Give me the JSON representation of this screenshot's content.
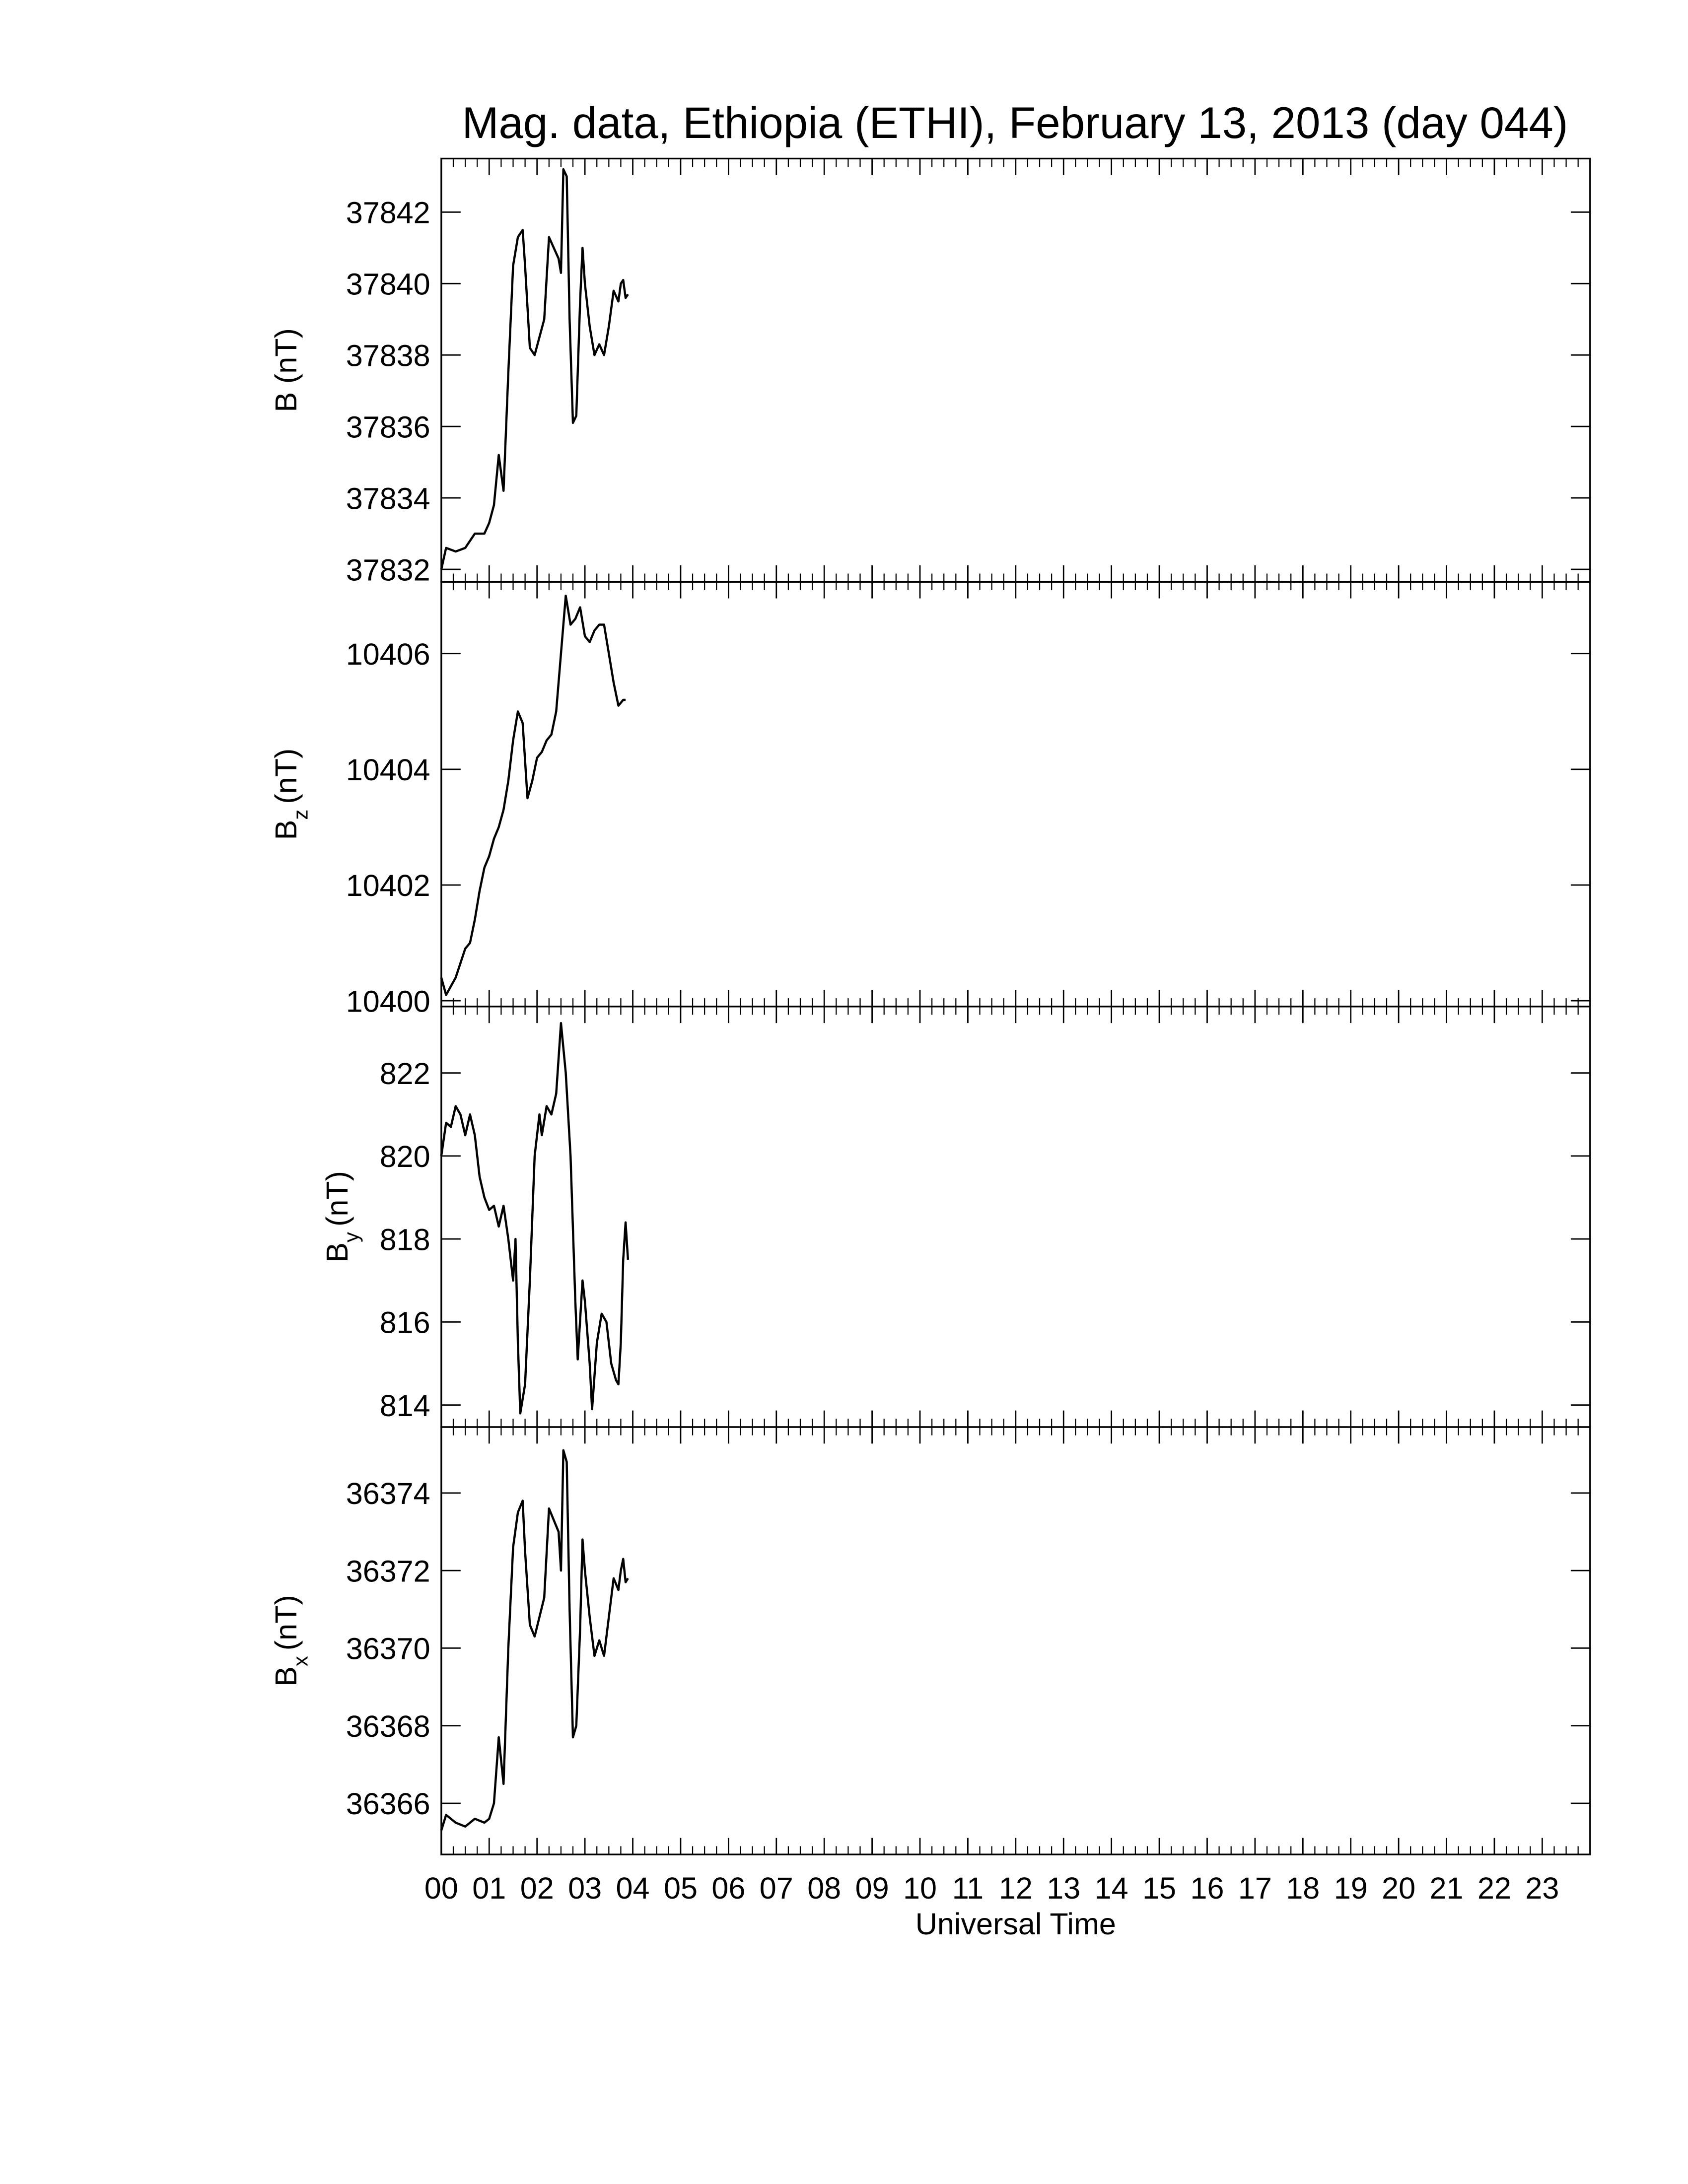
{
  "title": "Mag. data, Ethiopia (ETHI), February 13, 2013 (day 044)",
  "chart_data": [
    {
      "type": "line",
      "ylabel": "B",
      "ylabel_unit": "(nT)",
      "color": "#000000",
      "xlim": [
        0,
        24
      ],
      "xticks": [
        0,
        1,
        2,
        3,
        4,
        5,
        6,
        7,
        8,
        9,
        10,
        11,
        12,
        13,
        14,
        15,
        16,
        17,
        18,
        19,
        20,
        21,
        22,
        23
      ],
      "ylim": [
        37831.65,
        37843.5
      ],
      "yticks": [
        37832,
        37834,
        37836,
        37838,
        37840,
        37842
      ],
      "x": [
        0,
        0.1,
        0.3,
        0.5,
        0.7,
        0.9,
        1.0,
        1.1,
        1.2,
        1.3,
        1.4,
        1.5,
        1.6,
        1.7,
        1.75,
        1.85,
        1.95,
        2.05,
        2.15,
        2.25,
        2.35,
        2.45,
        2.5,
        2.55,
        2.62,
        2.68,
        2.75,
        2.82,
        2.9,
        2.95,
        3.0,
        3.1,
        3.2,
        3.3,
        3.4,
        3.5,
        3.6,
        3.7,
        3.75,
        3.8,
        3.85,
        3.9
      ],
      "values": [
        37832.0,
        37832.6,
        37832.5,
        37832.6,
        37833.0,
        37833.0,
        37833.3,
        37833.8,
        37835.2,
        37834.2,
        37837.5,
        37840.5,
        37841.3,
        37841.5,
        37840.5,
        37838.2,
        37838.0,
        37838.5,
        37839.0,
        37841.3,
        37841.0,
        37840.7,
        37840.3,
        37843.2,
        37843.0,
        37839.0,
        37836.1,
        37836.3,
        37839.5,
        37841.0,
        37840.0,
        37838.8,
        37838.0,
        37838.3,
        37838.0,
        37838.8,
        37839.8,
        37839.5,
        37840.0,
        37840.1,
        37839.6,
        37839.7
      ]
    },
    {
      "type": "line",
      "ylabel": "B",
      "ylabel_subscript": "z",
      "ylabel_unit": "(nT)",
      "color": "#000000",
      "xlim": [
        0,
        24
      ],
      "xticks": [
        0,
        1,
        2,
        3,
        4,
        5,
        6,
        7,
        8,
        9,
        10,
        11,
        12,
        13,
        14,
        15,
        16,
        17,
        18,
        19,
        20,
        21,
        22,
        23
      ],
      "ylim": [
        10399.9,
        10407.24
      ],
      "yticks": [
        10400,
        10402,
        10404,
        10406
      ],
      "x": [
        0,
        0.1,
        0.3,
        0.5,
        0.6,
        0.7,
        0.8,
        0.9,
        1.0,
        1.1,
        1.2,
        1.3,
        1.4,
        1.5,
        1.6,
        1.7,
        1.8,
        1.9,
        2.0,
        2.1,
        2.2,
        2.3,
        2.4,
        2.5,
        2.6,
        2.7,
        2.8,
        2.9,
        3.0,
        3.1,
        3.2,
        3.3,
        3.4,
        3.5,
        3.6,
        3.7,
        3.8,
        3.85
      ],
      "values": [
        10400.4,
        10400.1,
        10400.4,
        10400.9,
        10401.0,
        10401.4,
        10401.9,
        10402.3,
        10402.5,
        10402.8,
        10403.0,
        10403.3,
        10403.8,
        10404.5,
        10405.0,
        10404.8,
        10403.5,
        10403.8,
        10404.2,
        10404.3,
        10404.5,
        10404.6,
        10405.0,
        10406.0,
        10407.0,
        10406.5,
        10406.6,
        10406.8,
        10406.3,
        10406.2,
        10406.4,
        10406.5,
        10406.5,
        10406.0,
        10405.5,
        10405.1,
        10405.2,
        10405.2
      ]
    },
    {
      "type": "line",
      "ylabel": "B",
      "ylabel_subscript": "y",
      "ylabel_unit": "(nT)",
      "color": "#000000",
      "xlim": [
        0,
        24
      ],
      "xticks": [
        0,
        1,
        2,
        3,
        4,
        5,
        6,
        7,
        8,
        9,
        10,
        11,
        12,
        13,
        14,
        15,
        16,
        17,
        18,
        19,
        20,
        21,
        22,
        23
      ],
      "ylim": [
        813.47,
        823.6
      ],
      "yticks": [
        814,
        816,
        818,
        820,
        822
      ],
      "x": [
        0,
        0.1,
        0.2,
        0.3,
        0.4,
        0.5,
        0.6,
        0.7,
        0.8,
        0.9,
        1.0,
        1.1,
        1.2,
        1.3,
        1.4,
        1.5,
        1.55,
        1.6,
        1.65,
        1.75,
        1.85,
        1.95,
        2.05,
        2.1,
        2.2,
        2.3,
        2.4,
        2.5,
        2.6,
        2.7,
        2.8,
        2.85,
        2.95,
        3.0,
        3.1,
        3.15,
        3.25,
        3.35,
        3.45,
        3.55,
        3.65,
        3.7,
        3.75,
        3.8,
        3.85,
        3.9
      ],
      "values": [
        820.0,
        820.8,
        820.7,
        821.2,
        821.0,
        820.5,
        821.0,
        820.5,
        819.5,
        819.0,
        818.7,
        818.8,
        818.3,
        818.8,
        818.0,
        817.0,
        818.0,
        815.5,
        813.8,
        814.5,
        817.0,
        820.0,
        821.0,
        820.5,
        821.2,
        821.0,
        821.5,
        823.2,
        822.0,
        820.0,
        816.5,
        815.1,
        817.0,
        816.5,
        815.0,
        813.9,
        815.5,
        816.2,
        816.0,
        815.0,
        814.6,
        814.5,
        815.5,
        817.5,
        818.4,
        817.5
      ]
    },
    {
      "type": "line",
      "ylabel": "B",
      "ylabel_subscript": "x",
      "ylabel_unit": "(nT)",
      "xlabel": "Universal Time",
      "color": "#000000",
      "xlim": [
        0,
        24
      ],
      "xticks": [
        {
          "value": 0,
          "label": "00"
        },
        {
          "value": 1,
          "label": "01"
        },
        {
          "value": 2,
          "label": "02"
        },
        {
          "value": 3,
          "label": "03"
        },
        {
          "value": 4,
          "label": "04"
        },
        {
          "value": 5,
          "label": "05"
        },
        {
          "value": 6,
          "label": "06"
        },
        {
          "value": 7,
          "label": "07"
        },
        {
          "value": 8,
          "label": "08"
        },
        {
          "value": 9,
          "label": "09"
        },
        10,
        11,
        12,
        13,
        14,
        15,
        16,
        17,
        18,
        19,
        20,
        21,
        22,
        23
      ],
      "ylim": [
        36364.68,
        36375.7
      ],
      "yticks": [
        36366,
        36368,
        36370,
        36372,
        36374
      ],
      "x": [
        0,
        0.1,
        0.3,
        0.5,
        0.7,
        0.9,
        1.0,
        1.1,
        1.2,
        1.3,
        1.4,
        1.5,
        1.6,
        1.7,
        1.75,
        1.85,
        1.95,
        2.05,
        2.15,
        2.25,
        2.35,
        2.45,
        2.5,
        2.55,
        2.62,
        2.68,
        2.75,
        2.82,
        2.9,
        2.95,
        3.0,
        3.1,
        3.2,
        3.3,
        3.4,
        3.5,
        3.6,
        3.7,
        3.75,
        3.8,
        3.85,
        3.9
      ],
      "values": [
        36365.3,
        36365.7,
        36365.5,
        36365.4,
        36365.6,
        36365.5,
        36365.6,
        36366.0,
        36367.7,
        36366.5,
        36370.0,
        36372.6,
        36373.5,
        36373.8,
        36372.5,
        36370.6,
        36370.3,
        36370.8,
        36371.3,
        36373.6,
        36373.3,
        36373.0,
        36372.0,
        36375.1,
        36374.8,
        36371.0,
        36367.7,
        36368.0,
        36370.5,
        36372.8,
        36372.0,
        36370.8,
        36369.8,
        36370.2,
        36369.8,
        36370.8,
        36371.8,
        36371.5,
        36372.0,
        36372.3,
        36371.7,
        36371.8
      ]
    }
  ]
}
